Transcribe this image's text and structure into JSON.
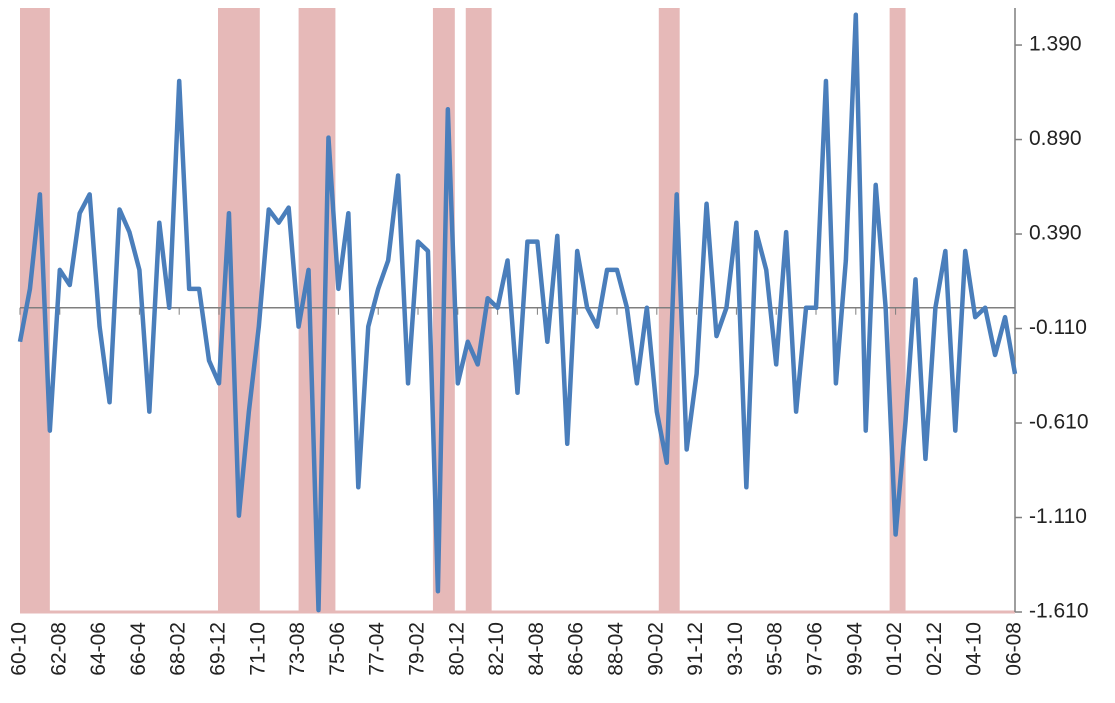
{
  "chart_data": {
    "type": "line",
    "color": "#4a7ebb",
    "shade_color": "#e6b9b8",
    "categories": [
      "60-10",
      null,
      null,
      null,
      "62-08",
      null,
      null,
      null,
      "64-06",
      null,
      null,
      null,
      "66-04",
      null,
      null,
      null,
      "68-02",
      null,
      null,
      null,
      "69-12",
      null,
      null,
      null,
      "71-10",
      null,
      null,
      null,
      "73-08",
      null,
      null,
      null,
      "75-06",
      null,
      null,
      null,
      "77-04",
      null,
      null,
      null,
      "79-02",
      null,
      null,
      null,
      "80-12",
      null,
      null,
      null,
      "82-10",
      null,
      null,
      null,
      "84-08",
      null,
      null,
      null,
      "86-06",
      null,
      null,
      null,
      "88-04",
      null,
      null,
      null,
      "90-02",
      null,
      null,
      null,
      "91-12",
      null,
      null,
      null,
      "93-10",
      null,
      null,
      null,
      "95-08",
      null,
      null,
      null,
      "97-06",
      null,
      null,
      null,
      "99-04",
      null,
      null,
      null,
      "01-02",
      null,
      null,
      null,
      "02-12",
      null,
      null,
      null,
      "04-10",
      null,
      null,
      null,
      "06-08"
    ],
    "values": [
      -0.18,
      0.1,
      0.6,
      -0.65,
      0.2,
      0.12,
      0.5,
      0.6,
      -0.1,
      -0.5,
      0.52,
      0.4,
      0.2,
      -0.55,
      0.45,
      0.0,
      1.2,
      0.1,
      0.1,
      -0.28,
      -0.4,
      0.5,
      -1.1,
      -0.55,
      -0.1,
      0.52,
      0.45,
      0.53,
      -0.1,
      0.2,
      -1.6,
      0.9,
      0.1,
      0.5,
      -0.95,
      -0.1,
      0.1,
      0.25,
      0.7,
      -0.4,
      0.35,
      0.3,
      -1.5,
      1.05,
      -0.4,
      -0.18,
      -0.3,
      0.05,
      0.0,
      0.25,
      -0.45,
      0.35,
      0.35,
      -0.18,
      0.38,
      -0.72,
      0.3,
      0.0,
      -0.1,
      0.2,
      0.2,
      0.0,
      -0.4,
      0.0,
      -0.55,
      -0.82,
      0.6,
      -0.75,
      -0.35,
      0.55,
      -0.15,
      0.0,
      0.45,
      -0.95,
      0.4,
      0.2,
      -0.3,
      0.4,
      -0.55,
      0.0,
      0.0,
      1.2,
      -0.4,
      0.25,
      1.55,
      -0.65,
      0.65,
      0.0,
      -1.2,
      -0.6,
      0.15,
      -0.8,
      0.0,
      0.3,
      -0.65,
      0.3,
      -0.05,
      0.0,
      -0.25,
      -0.05,
      -0.35
    ],
    "shaded_ranges": [
      [
        0,
        3.0
      ],
      [
        19.9,
        24.1
      ],
      [
        28.0,
        31.7
      ],
      [
        41.5,
        43.7
      ],
      [
        44.8,
        47.4
      ],
      [
        64.2,
        66.3
      ],
      [
        87.4,
        89.0
      ]
    ],
    "ylim": [
      -1.61,
      1.586
    ],
    "yticks": [
      {
        "value": -1.61,
        "label": "-1.610"
      },
      {
        "value": -1.11,
        "label": "-1.110"
      },
      {
        "value": -0.61,
        "label": "-0.610"
      },
      {
        "value": -0.11,
        "label": "-0.110"
      },
      {
        "value": 0.39,
        "label": "0.390"
      },
      {
        "value": 0.89,
        "label": "0.890"
      },
      {
        "value": 1.39,
        "label": "1.390"
      }
    ],
    "y_axis_side": "right"
  }
}
